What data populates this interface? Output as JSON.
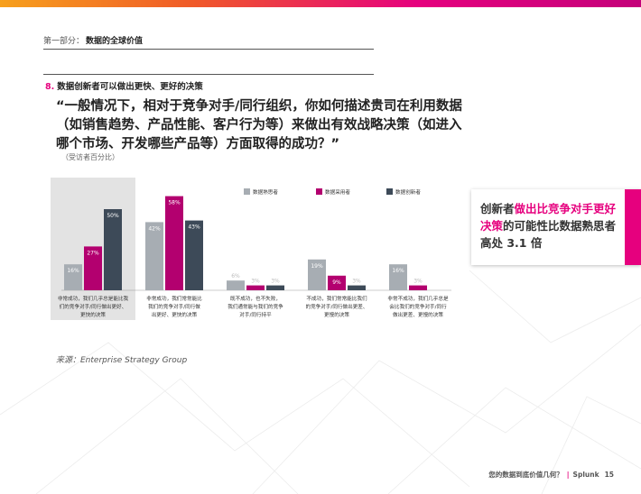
{
  "header": {
    "section_label": "第一部分：",
    "section_title": "数据的全球价值",
    "question_number": "8.",
    "question_title": "数据创新者可以做出更快、更好的决策"
  },
  "question_text": "“一般情况下，相对于竞争对手/同行组织，你如何描述贵司在利用数据（如销售趋势、产品性能、客户行为等）来做出有效战略决策（如进入哪个市场、开发哪些产品等）方面取得的成功？”",
  "note": "（受访者百分比）",
  "source": "来源：Enterprise Strategy Group",
  "callout": {
    "part1": "创新者",
    "part2": "做出比竞争对手更好决策",
    "part3": "的可能性比数据熟思者高处 3.1 倍"
  },
  "footer": {
    "text": "您的数据到底价值几何？",
    "brand": "Splunk",
    "page": "15"
  },
  "colors": {
    "accent": "#e6007e",
    "series_gray": "#a7adb3",
    "series_magenta": "#b3006f",
    "series_dark": "#3d4a58",
    "highlight_bg": "#e3e3e3"
  },
  "chart_data": {
    "type": "bar",
    "categories": [
      [
        "非常成功，我们几乎总是能比我",
        "们的竞争对手/同行做出更好、",
        "更快的决策"
      ],
      [
        "非常成功，我们常常能比",
        "我们的竞争对手/同行做",
        "出更好、更快的决策"
      ],
      [
        "既不成功，也不失败，",
        "我们通常能与我们的竞争",
        "对手/同行持平"
      ],
      [
        "不成功，我们常常能比我们",
        "的竞争对手/同行做出更差、",
        "更慢的决策"
      ],
      [
        "非常不成功，我们几乎总是",
        "会比我们的竞争对手/同行",
        "做出更差、更慢的决策"
      ]
    ],
    "series": [
      {
        "name": "数据熟思者",
        "values": [
          16,
          42,
          6,
          19,
          16
        ]
      },
      {
        "name": "数据采用者",
        "values": [
          27,
          58,
          3,
          9,
          3
        ]
      },
      {
        "name": "数据创新者",
        "values": [
          50,
          43,
          3,
          3,
          0
        ]
      }
    ],
    "value_labels": [
      [
        "16%",
        "42%",
        "6%",
        "19%",
        "16%"
      ],
      [
        "27%",
        "58%",
        "3%",
        "9%",
        "3%"
      ],
      [
        "50%",
        "43%",
        "3%",
        "3%",
        ""
      ]
    ],
    "ylim": [
      0,
      60
    ],
    "highlight_category": 0,
    "legend_position": "top"
  }
}
